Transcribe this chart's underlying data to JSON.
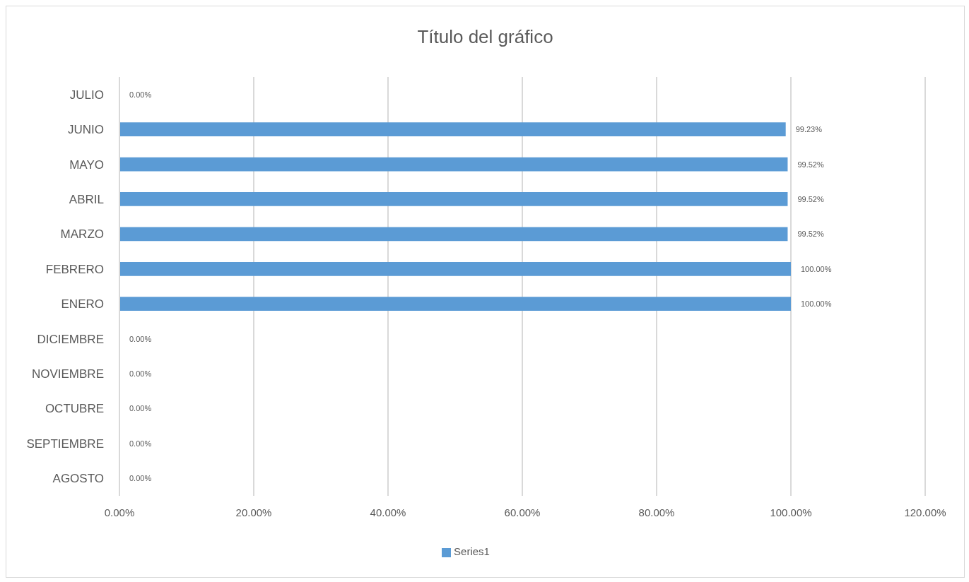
{
  "chart_data": {
    "type": "bar",
    "orientation": "horizontal",
    "title": "Título del gráfico",
    "categories": [
      "JULIO",
      "JUNIO",
      "MAYO",
      "ABRIL",
      "MARZO",
      "FEBRERO",
      "ENERO",
      "DICIEMBRE",
      "NOVIEMBRE",
      "OCTUBRE",
      "SEPTIEMBRE",
      "AGOSTO"
    ],
    "series": [
      {
        "name": "Series1",
        "color": "#5b9bd5",
        "values": [
          0,
          99.23,
          99.52,
          99.52,
          99.52,
          100,
          100,
          0,
          0,
          0,
          0,
          0
        ],
        "value_labels": [
          "0.00%",
          "99.23%",
          "99.52%",
          "99.52%",
          "99.52%",
          "100.00%",
          "100.00%",
          "0.00%",
          "0.00%",
          "0.00%",
          "0.00%",
          "0.00%"
        ]
      }
    ],
    "xlim": [
      0,
      120
    ],
    "xticks": [
      {
        "value": 0,
        "label": "0.00%"
      },
      {
        "value": 20,
        "label": "20.00%"
      },
      {
        "value": 40,
        "label": "40.00%"
      },
      {
        "value": 60,
        "label": "60.00%"
      },
      {
        "value": 80,
        "label": "80.00%"
      },
      {
        "value": 100,
        "label": "100.00%"
      },
      {
        "value": 120,
        "label": "120.00%"
      }
    ],
    "grid": "x",
    "legend": "bottom"
  }
}
